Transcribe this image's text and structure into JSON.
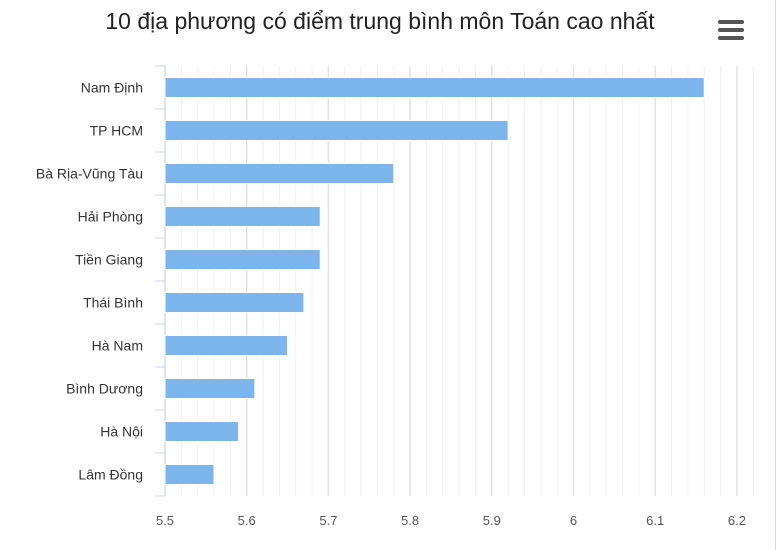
{
  "chart_data": {
    "type": "bar",
    "orientation": "horizontal",
    "title": "10 địa phương có điểm trung bình môn Toán cao nhất",
    "categories": [
      "Nam Định",
      "TP HCM",
      "Bà Rịa-Vũng Tàu",
      "Hải Phòng",
      "Tiền Giang",
      "Thái Bình",
      "Hà Nam",
      "Bình Dương",
      "Hà Nội",
      "Lâm Đồng"
    ],
    "values": [
      6.16,
      5.92,
      5.78,
      5.69,
      5.69,
      5.67,
      5.65,
      5.61,
      5.59,
      5.56
    ],
    "xlim": [
      5.5,
      6.22
    ],
    "xticks": [
      "5.5",
      "5.6",
      "5.7",
      "5.8",
      "5.9",
      "6",
      "6.1",
      "6.2"
    ],
    "grid": true,
    "bar_color": "#7cb5ec",
    "legend": "none"
  },
  "menu_icon": "hamburger-menu-icon"
}
